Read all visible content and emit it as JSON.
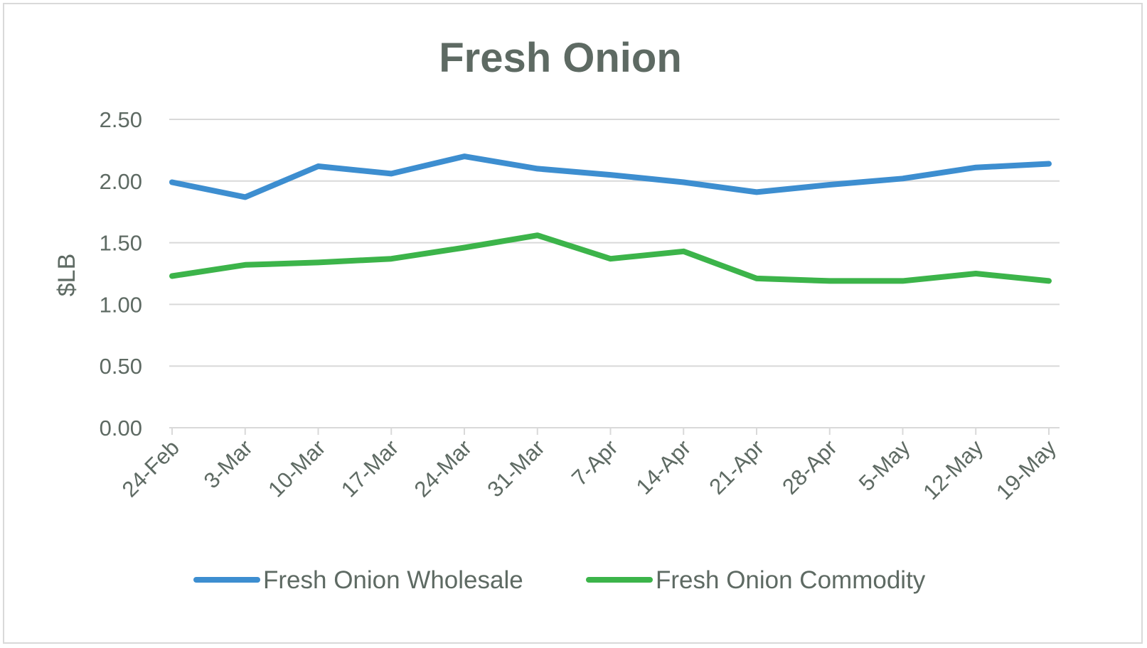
{
  "chart_data": {
    "type": "line",
    "title": "Fresh Onion",
    "xlabel": "",
    "ylabel": "$LB",
    "ylim": [
      0,
      2.5
    ],
    "yticks": [
      "0.00",
      "0.50",
      "1.00",
      "1.50",
      "2.00",
      "2.50"
    ],
    "ytick_values": [
      0,
      0.5,
      1.0,
      1.5,
      2.0,
      2.5
    ],
    "categories": [
      "24-Feb",
      "3-Mar",
      "10-Mar",
      "17-Mar",
      "24-Mar",
      "31-Mar",
      "7-Apr",
      "14-Apr",
      "21-Apr",
      "28-Apr",
      "5-May",
      "12-May",
      "19-May"
    ],
    "grid": true,
    "legend_position": "bottom",
    "series": [
      {
        "name": "Fresh Onion Wholesale",
        "color": "#3d8ed0",
        "values": [
          1.99,
          1.87,
          2.12,
          2.06,
          2.2,
          2.1,
          2.05,
          1.99,
          1.91,
          1.97,
          2.02,
          2.11,
          2.14
        ]
      },
      {
        "name": "Fresh Onion Commodity",
        "color": "#3cb44a",
        "values": [
          1.23,
          1.32,
          1.34,
          1.37,
          1.46,
          1.56,
          1.37,
          1.43,
          1.21,
          1.19,
          1.19,
          1.25,
          1.19
        ]
      }
    ]
  }
}
